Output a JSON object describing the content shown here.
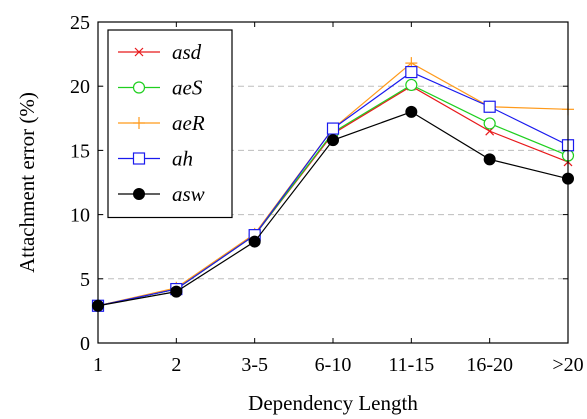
{
  "chart_data": {
    "type": "line",
    "xlabel": "Dependency Length",
    "ylabel": "Attachment error (%)",
    "categories": [
      "1",
      "2",
      "3-5",
      "6-10",
      "11-15",
      "16-20",
      ">20"
    ],
    "ylim": [
      0,
      25
    ],
    "yticks": [
      0,
      5,
      10,
      15,
      20,
      25
    ],
    "grid": "horizontal-dashed",
    "legend_position": "top-left",
    "series": [
      {
        "name": "asd",
        "color": "#e8191b",
        "marker": "x",
        "values": [
          2.9,
          4.2,
          8.4,
          16.3,
          20.0,
          16.5,
          14.1
        ]
      },
      {
        "name": "aeS",
        "color": "#1fcf1f",
        "marker": "circle-open",
        "values": [
          2.9,
          4.2,
          8.4,
          16.4,
          20.1,
          17.1,
          14.6
        ]
      },
      {
        "name": "aeR",
        "color": "#ff9a1a",
        "marker": "plus",
        "values": [
          2.9,
          4.3,
          8.5,
          16.7,
          21.8,
          18.4,
          18.2
        ]
      },
      {
        "name": "ah",
        "color": "#1a1aee",
        "marker": "square-open",
        "values": [
          2.9,
          4.2,
          8.4,
          16.7,
          21.1,
          18.4,
          15.4
        ]
      },
      {
        "name": "asw",
        "color": "#000000",
        "marker": "circle-filled",
        "values": [
          2.9,
          4.0,
          7.9,
          15.8,
          18.0,
          14.3,
          12.8
        ]
      }
    ]
  }
}
